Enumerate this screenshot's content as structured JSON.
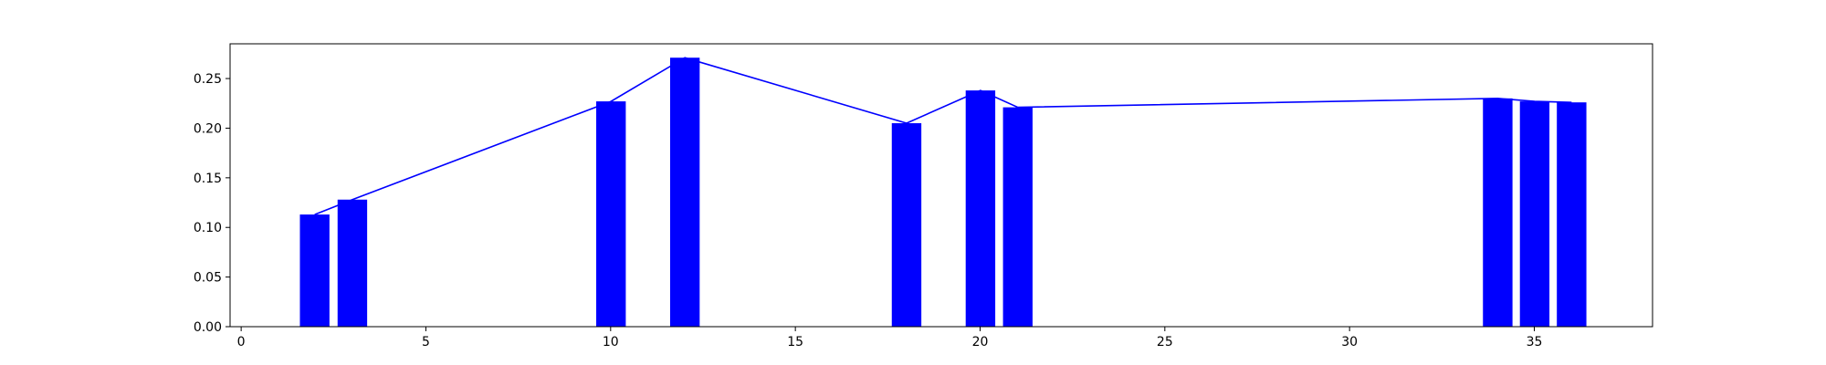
{
  "chart_data": {
    "type": "bar",
    "x": [
      1.99,
      3.01,
      10.01,
      12.01,
      18.01,
      20.01,
      21.02,
      34.01,
      35.01,
      36.01
    ],
    "values": [
      0.113,
      0.128,
      0.227,
      0.271,
      0.205,
      0.238,
      0.221,
      0.23,
      0.227,
      0.226
    ],
    "line_values": [
      0.113,
      0.128,
      0.227,
      0.271,
      0.205,
      0.238,
      0.221,
      0.23,
      0.227,
      0.226
    ],
    "bar_width": 0.8,
    "xlim": [
      -0.3,
      38.2
    ],
    "ylim": [
      0,
      0.285
    ],
    "x_ticks": [
      0,
      5,
      10,
      15,
      20,
      25,
      30,
      35
    ],
    "x_tick_labels": [
      "0",
      "5",
      "10",
      "15",
      "20",
      "25",
      "30",
      "35"
    ],
    "y_ticks": [
      0.0,
      0.05,
      0.1,
      0.15,
      0.2,
      0.25
    ],
    "y_tick_labels": [
      "0.00",
      "0.05",
      "0.10",
      "0.15",
      "0.20",
      "0.25"
    ],
    "title": "",
    "xlabel": "",
    "ylabel": "",
    "grid": false,
    "legend": "none",
    "bar_color": "#0000ff",
    "line_color": "#0000ff"
  }
}
